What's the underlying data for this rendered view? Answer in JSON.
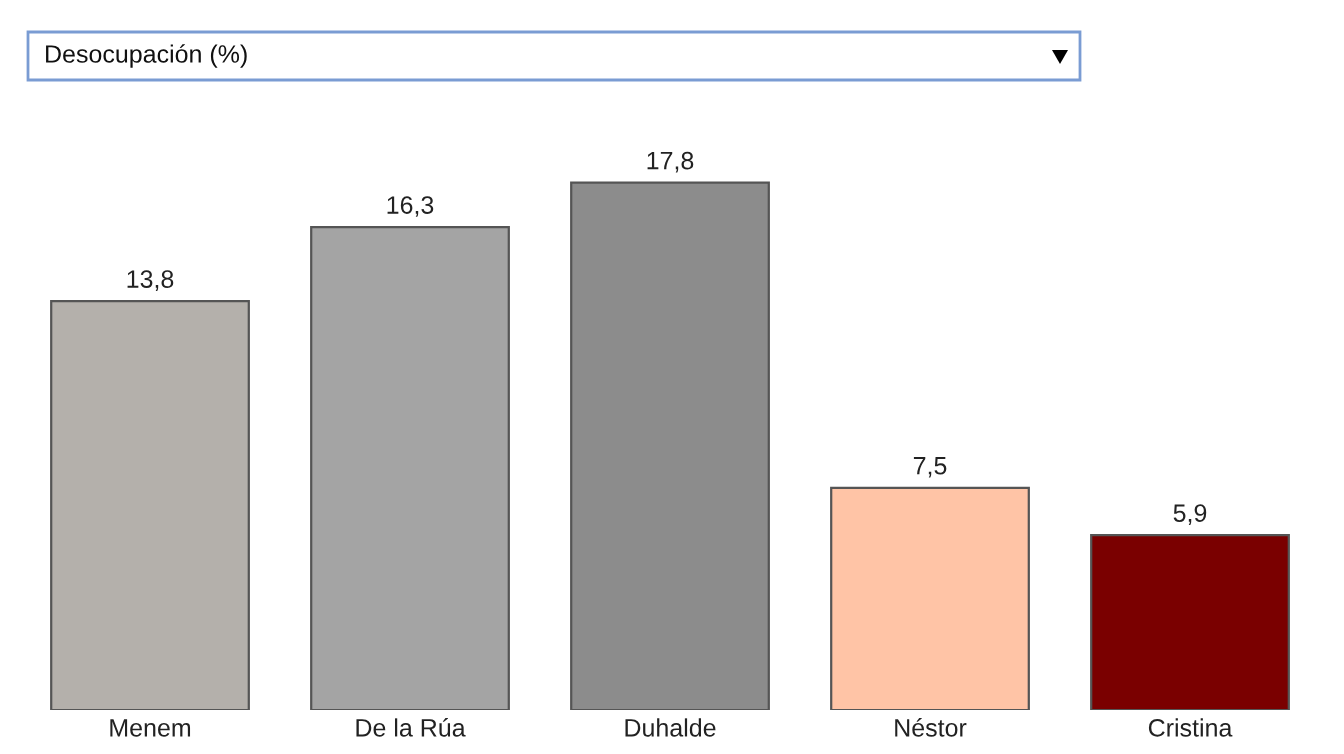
{
  "chart_data": {
    "type": "bar",
    "title": "Desocupación (%)",
    "categories": [
      "Menem",
      "De la Rúa",
      "Duhalde",
      "Néstor",
      "Cristina"
    ],
    "values": [
      13.8,
      16.3,
      17.8,
      7.5,
      5.9
    ],
    "colors": [
      "#b4b0ab",
      "#a4a4a4",
      "#8c8c8c",
      "#ffc4a6",
      "#7a0000"
    ],
    "value_labels": [
      "13,8",
      "16,3",
      "17,8",
      "7,5",
      "5,9"
    ],
    "grid": false,
    "legend": false
  }
}
